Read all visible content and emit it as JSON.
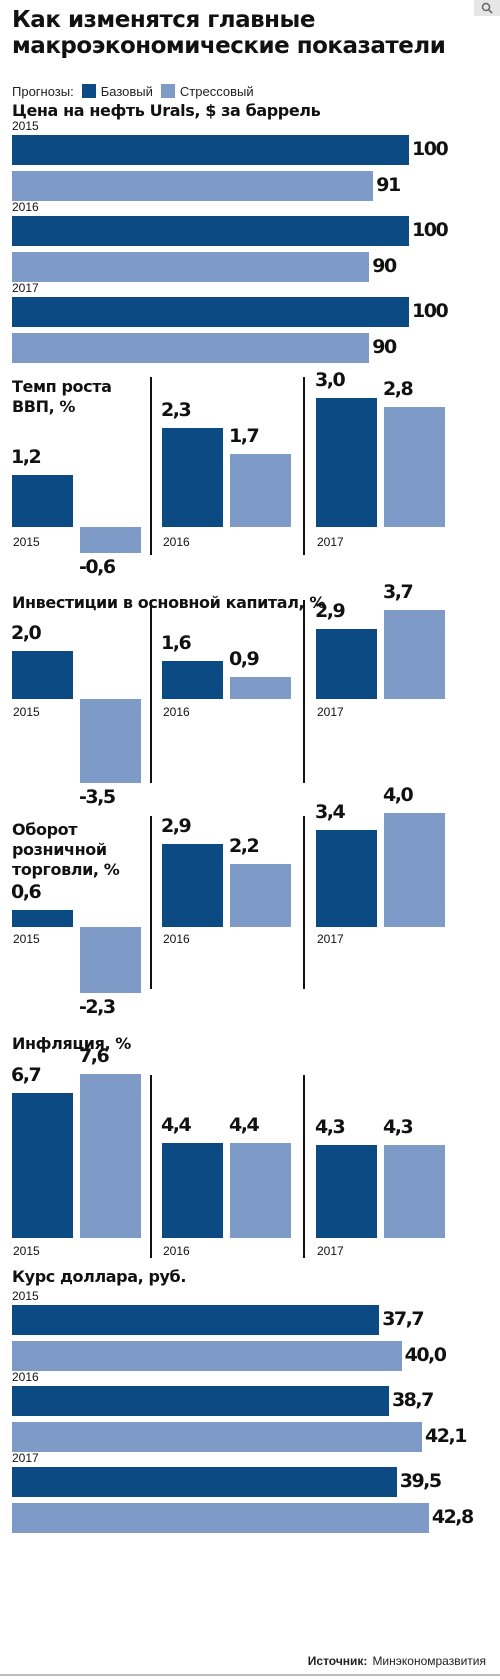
{
  "header": {
    "title": "Как изменятся главные макроэкономические показатели",
    "search_icon": "search-icon"
  },
  "legend": {
    "label": "Прогнозы:",
    "base": "Базовый",
    "stress": "Стрессовый"
  },
  "colors": {
    "base": "#0c4a84",
    "stress": "#7e9ac6"
  },
  "source": {
    "label": "Источник:",
    "value": "Минэкономразвития"
  },
  "chart_data": [
    {
      "type": "bar",
      "orientation": "horizontal",
      "title": "Цена на нефть Urals, $ за баррель",
      "categories": [
        "2015",
        "2016",
        "2017"
      ],
      "series": [
        {
          "name": "Базовый",
          "values": [
            100,
            100,
            100
          ],
          "labels": [
            "100",
            "100",
            "100"
          ]
        },
        {
          "name": "Стрессовый",
          "values": [
            91,
            90,
            90
          ],
          "labels": [
            "91",
            "90",
            "90"
          ]
        }
      ]
    },
    {
      "type": "bar",
      "orientation": "vertical",
      "title": "Темп роста ВВП, %",
      "categories": [
        "2015",
        "2016",
        "2017"
      ],
      "series": [
        {
          "name": "Базовый",
          "values": [
            1.2,
            2.3,
            3.0
          ],
          "labels": [
            "1,2",
            "2,3",
            "3,0"
          ]
        },
        {
          "name": "Стрессовый",
          "values": [
            -0.6,
            1.7,
            2.8
          ],
          "labels": [
            "-0,6",
            "1,7",
            "2,8"
          ]
        }
      ]
    },
    {
      "type": "bar",
      "orientation": "vertical",
      "title": "Инвестиции в основной капитал, %",
      "categories": [
        "2015",
        "2016",
        "2017"
      ],
      "series": [
        {
          "name": "Базовый",
          "values": [
            2.0,
            1.6,
            2.9
          ],
          "labels": [
            "2,0",
            "1,6",
            "2,9"
          ]
        },
        {
          "name": "Стрессовый",
          "values": [
            -3.5,
            0.9,
            3.7
          ],
          "labels": [
            "-3,5",
            "0,9",
            "3,7"
          ]
        }
      ]
    },
    {
      "type": "bar",
      "orientation": "vertical",
      "title": "Оборот розничной торговли, %",
      "categories": [
        "2015",
        "2016",
        "2017"
      ],
      "series": [
        {
          "name": "Базовый",
          "values": [
            0.6,
            2.9,
            3.4
          ],
          "labels": [
            "0,6",
            "2,9",
            "3,4"
          ]
        },
        {
          "name": "Стрессовый",
          "values": [
            -2.3,
            2.2,
            4.0
          ],
          "labels": [
            "-2,3",
            "2,2",
            "4,0"
          ]
        }
      ]
    },
    {
      "type": "bar",
      "orientation": "vertical",
      "title": "Инфляция, %",
      "categories": [
        "2015",
        "2016",
        "2017"
      ],
      "series": [
        {
          "name": "Базовый",
          "values": [
            6.7,
            4.4,
            4.3
          ],
          "labels": [
            "6,7",
            "4,4",
            "4,3"
          ]
        },
        {
          "name": "Стрессовый",
          "values": [
            7.6,
            4.4,
            4.3
          ],
          "labels": [
            "7,6",
            "4,4",
            "4,3"
          ]
        }
      ]
    },
    {
      "type": "bar",
      "orientation": "horizontal",
      "title": "Курс доллара, руб.",
      "categories": [
        "2015",
        "2016",
        "2017"
      ],
      "series": [
        {
          "name": "Базовый",
          "values": [
            37.7,
            38.7,
            39.5
          ],
          "labels": [
            "37,7",
            "38,7",
            "39,5"
          ]
        },
        {
          "name": "Стрессовый",
          "values": [
            40.0,
            42.1,
            42.8
          ],
          "labels": [
            "40,0",
            "42,1",
            "42,8"
          ]
        }
      ]
    }
  ]
}
